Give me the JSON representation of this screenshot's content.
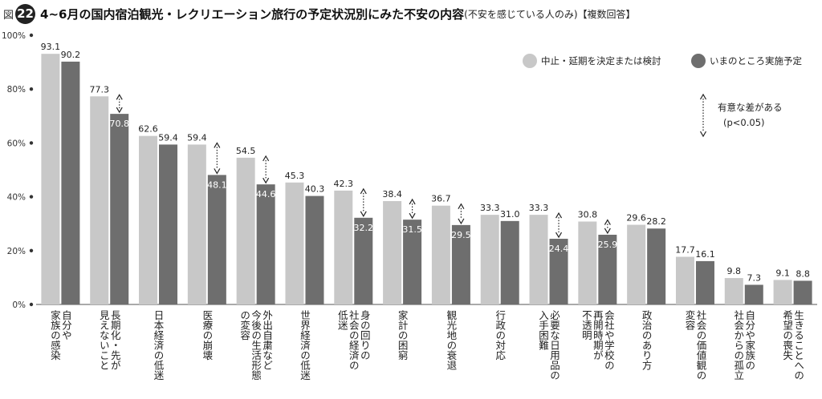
{
  "figure": {
    "prefix": "図",
    "number": "22",
    "title": "4~6月の国内宿泊観光・レクリエーション旅行の予定状況別にみた不安の内容",
    "subtitle": "(不安を感じている人のみ)【複数回答】"
  },
  "chart_data": {
    "type": "bar",
    "categories": [
      "自分や家族の感染",
      "長期化・先が見えないこと",
      "日本経済の低迷",
      "医療の崩壊",
      "外出自粛など今後の生活形態の変容",
      "世界経済の低迷",
      "身の回りの社会の経済の低迷",
      "家計の困窮",
      "観光地の衰退",
      "行政の対応",
      "必要な日用品の入手困難",
      "会社や学校の再開時期が不透明",
      "政治のあり方",
      "社会の価値観の変容",
      "自分や家族の社会からの孤立",
      "生きることへの希望の喪失"
    ],
    "category_lines": [
      [
        "自分や",
        "家族の感染"
      ],
      [
        "長期化・先が",
        "見えないこと"
      ],
      [
        "日本経済の低迷"
      ],
      [
        "医療の崩壊"
      ],
      [
        "外出自粛など",
        "今後の生活形態",
        "の変容"
      ],
      [
        "世界経済の低迷"
      ],
      [
        "身の回りの",
        "社会の経済の",
        "低迷"
      ],
      [
        "家計の困窮"
      ],
      [
        "観光地の衰退"
      ],
      [
        "行政の対応"
      ],
      [
        "必要な日用品の",
        "入手困難"
      ],
      [
        "会社や学校の",
        "再開時期が",
        "不透明"
      ],
      [
        "政治のあり方"
      ],
      [
        "社会の価値観の",
        "変容"
      ],
      [
        "自分や家族の",
        "社会からの孤立"
      ],
      [
        "生きることへの",
        "希望の喪失"
      ]
    ],
    "series": [
      {
        "name": "中止・延期を決定または検討",
        "color": "#c8c8c8",
        "values": [
          93.1,
          77.3,
          62.6,
          59.4,
          54.5,
          45.3,
          42.3,
          38.4,
          36.7,
          33.3,
          33.3,
          30.8,
          29.6,
          17.7,
          9.8,
          9.1
        ]
      },
      {
        "name": "いまのところ実施予定",
        "color": "#6e6e6e",
        "values": [
          90.2,
          70.8,
          59.4,
          48.1,
          44.6,
          40.3,
          32.2,
          31.5,
          29.5,
          31.0,
          24.4,
          25.9,
          28.2,
          16.1,
          7.3,
          8.8
        ]
      }
    ],
    "significant": [
      false,
      true,
      false,
      true,
      true,
      false,
      true,
      true,
      true,
      false,
      true,
      true,
      false,
      false,
      false,
      false
    ],
    "significance_note": [
      "有意な差がある",
      "(p<0.05)"
    ],
    "yticks": [
      "0%",
      "20%",
      "40%",
      "60%",
      "80%",
      "100%"
    ],
    "ylim": [
      0,
      100
    ],
    "legend_position": "top-right",
    "grid": false
  }
}
